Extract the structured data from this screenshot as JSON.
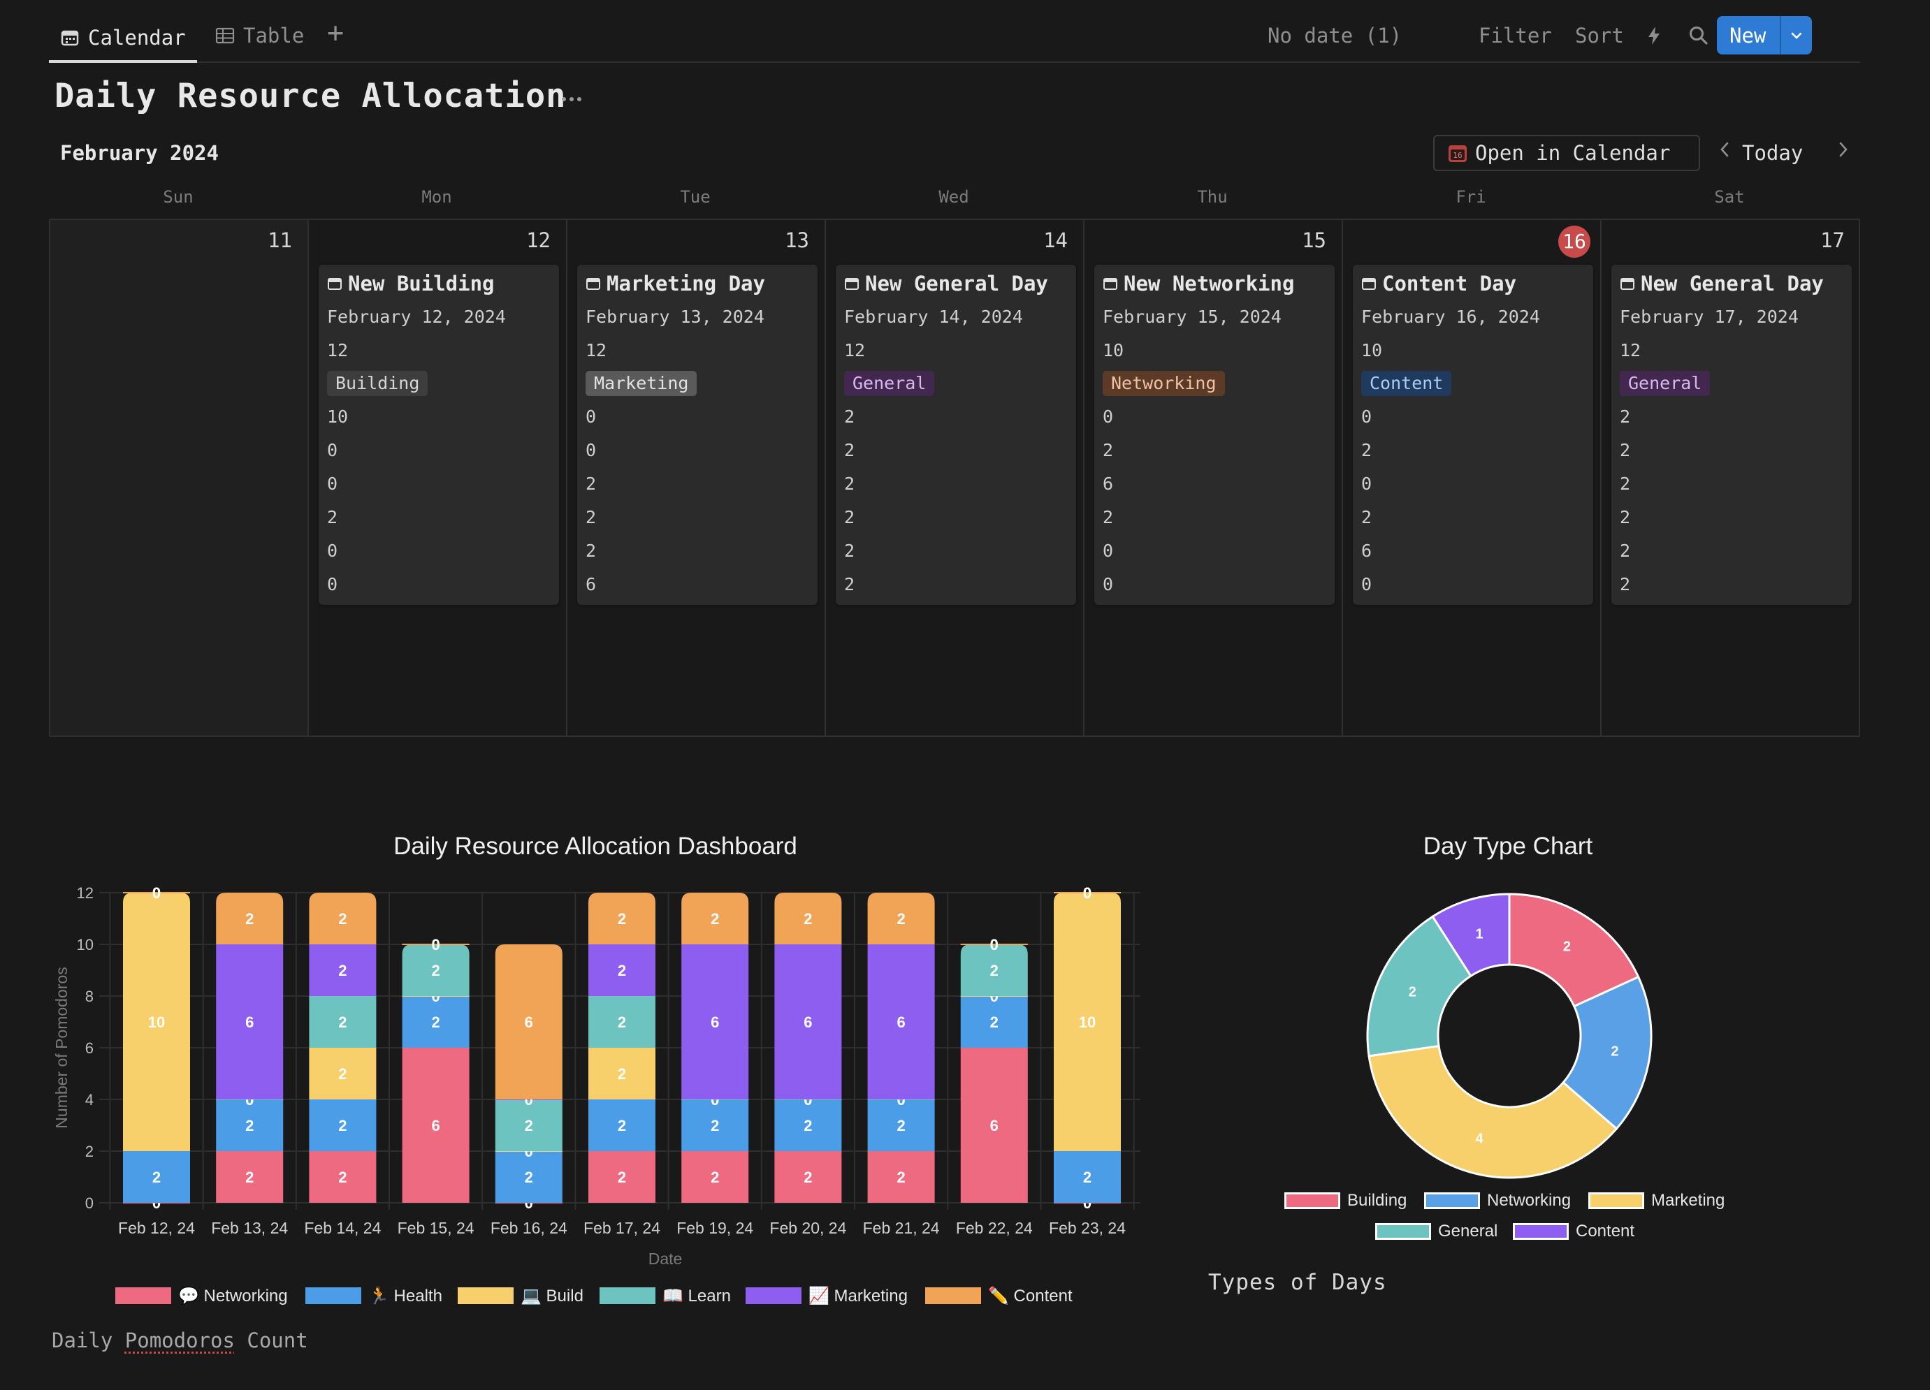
{
  "toolbar": {
    "tabs": [
      {
        "label": "Calendar"
      },
      {
        "label": "Table"
      }
    ],
    "add_symbol": "+",
    "no_date": "No date (1)",
    "filter": "Filter",
    "sort": "Sort",
    "new_label": "New"
  },
  "page": {
    "title": "Daily Resource Allocation",
    "month": "February 2024",
    "open_in_calendar": "Open in Calendar",
    "today": "Today",
    "weekdays": [
      "Sun",
      "Mon",
      "Tue",
      "Wed",
      "Thu",
      "Fri",
      "Sat"
    ]
  },
  "calendar": {
    "days": [
      {
        "num": "11",
        "today": false,
        "card": null
      },
      {
        "num": "12",
        "today": false,
        "card": {
          "title": "New Building",
          "date": "February 12, 2024",
          "total": "12",
          "type": "Building",
          "values": [
            "10",
            "0",
            "0",
            "2",
            "0",
            "0"
          ]
        }
      },
      {
        "num": "13",
        "today": false,
        "card": {
          "title": "Marketing Day",
          "date": "February 13, 2024",
          "total": "12",
          "type": "Marketing",
          "values": [
            "0",
            "0",
            "2",
            "2",
            "2",
            "6"
          ]
        }
      },
      {
        "num": "14",
        "today": false,
        "card": {
          "title": "New General Day",
          "date": "February 14, 2024",
          "total": "12",
          "type": "General",
          "values": [
            "2",
            "2",
            "2",
            "2",
            "2",
            "2"
          ]
        }
      },
      {
        "num": "15",
        "today": false,
        "card": {
          "title": "New Networking",
          "date": "February 15, 2024",
          "total": "10",
          "type": "Networking",
          "values": [
            "0",
            "2",
            "6",
            "2",
            "0",
            "0"
          ]
        }
      },
      {
        "num": "16",
        "today": true,
        "card": {
          "title": "Content Day",
          "date": "February 16, 2024",
          "total": "10",
          "type": "Content",
          "values": [
            "0",
            "2",
            "0",
            "2",
            "6",
            "0"
          ]
        }
      },
      {
        "num": "17",
        "today": false,
        "card": {
          "title": "New General Day",
          "date": "February 17, 2024",
          "total": "12",
          "type": "General",
          "values": [
            "2",
            "2",
            "2",
            "2",
            "2",
            "2"
          ]
        }
      }
    ],
    "tag_colors": {
      "Building": {
        "bg": "#3d3d3d",
        "fg": "#d6d6d6"
      },
      "Marketing": {
        "bg": "#5a5a5a",
        "fg": "#e2e2e2"
      },
      "General": {
        "bg": "#42284f",
        "fg": "#d9b8f0"
      },
      "Networking": {
        "bg": "#5c3a28",
        "fg": "#f0c2a3"
      },
      "Content": {
        "bg": "#1f3a5c",
        "fg": "#a9cdf5"
      }
    }
  },
  "chart_data": [
    {
      "type": "bar",
      "stacked": true,
      "title": "Daily Resource Allocation Dashboard",
      "xlabel": "Date",
      "ylabel": "Number of Pomodoros",
      "ylim": [
        0,
        12
      ],
      "yticks": [
        0,
        2,
        4,
        6,
        8,
        10,
        12
      ],
      "categories": [
        "Feb 12, 24",
        "Feb 13, 24",
        "Feb 14, 24",
        "Feb 15, 24",
        "Feb 16, 24",
        "Feb 17, 24",
        "Feb 19, 24",
        "Feb 20, 24",
        "Feb 21, 24",
        "Feb 22, 24",
        "Feb 23, 24"
      ],
      "series": [
        {
          "name": "Networking",
          "emoji": "💬",
          "color": "#ee6a80",
          "values": [
            0,
            2,
            2,
            6,
            0,
            2,
            2,
            2,
            2,
            6,
            0
          ]
        },
        {
          "name": "Health",
          "emoji": "🏃",
          "color": "#4b9de8",
          "values": [
            2,
            2,
            2,
            2,
            2,
            2,
            2,
            2,
            2,
            2,
            2
          ]
        },
        {
          "name": "Build",
          "emoji": "💻",
          "color": "#f8d06b",
          "values": [
            10,
            0,
            2,
            0,
            0,
            2,
            0,
            0,
            0,
            0,
            10
          ]
        },
        {
          "name": "Learn",
          "emoji": "📖",
          "color": "#6cc3bf",
          "values": [
            0,
            0,
            2,
            2,
            2,
            2,
            0,
            0,
            0,
            2,
            0
          ]
        },
        {
          "name": "Marketing",
          "emoji": "📈",
          "color": "#8d5ef0",
          "values": [
            0,
            6,
            2,
            0,
            0,
            2,
            6,
            6,
            6,
            0,
            0
          ]
        },
        {
          "name": "Content",
          "emoji": "✏️",
          "color": "#f1a456",
          "values": [
            0,
            2,
            2,
            0,
            6,
            2,
            2,
            2,
            2,
            0,
            0
          ]
        }
      ],
      "caption": "Daily Pomodoros Count"
    },
    {
      "type": "pie",
      "donut": true,
      "title": "Day Type Chart",
      "labels": [
        "Building",
        "Networking",
        "Marketing",
        "General",
        "Content"
      ],
      "values": [
        2,
        2,
        4,
        2,
        1
      ],
      "colors": [
        "#ee6a80",
        "#5aa0e6",
        "#f8d06b",
        "#6cc3bf",
        "#8d5ef0"
      ],
      "caption": "Types of Days"
    }
  ]
}
